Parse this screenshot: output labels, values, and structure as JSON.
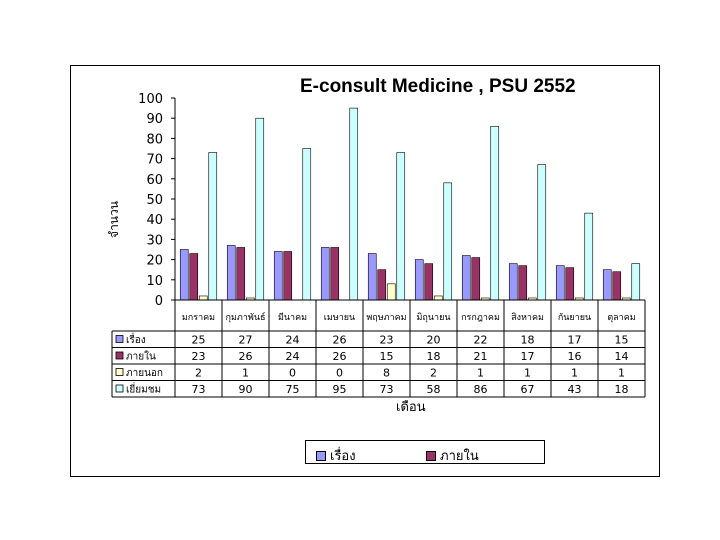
{
  "chart_data": {
    "type": "bar",
    "title": "E-consult Medicine , PSU 2552",
    "xlabel": "เดือน",
    "ylabel": "จำนวน",
    "ylim": [
      0,
      100
    ],
    "yticks": [
      0,
      10,
      20,
      30,
      40,
      50,
      60,
      70,
      80,
      90,
      100
    ],
    "categories": [
      "มกราคม",
      "กุมภาพันธ์",
      "มีนาคม",
      "เมษายน",
      "พฤษภาคม",
      "มิถุนายน",
      "กรกฎาคม",
      "สิงหาคม",
      "กันยายน",
      "ตุลาคม"
    ],
    "series": [
      {
        "name": "เรื่อง",
        "color": "#9999ff",
        "values": [
          25,
          27,
          24,
          26,
          23,
          20,
          22,
          18,
          17,
          15
        ]
      },
      {
        "name": "ภายใน",
        "color": "#993366",
        "values": [
          23,
          26,
          24,
          26,
          15,
          18,
          21,
          17,
          16,
          14
        ]
      },
      {
        "name": "ภายนอก",
        "color": "#ffffcc",
        "values": [
          2,
          1,
          0,
          0,
          8,
          2,
          1,
          1,
          1,
          1
        ]
      },
      {
        "name": "เยี่ยมชม",
        "color": "#ccffff",
        "values": [
          73,
          90,
          75,
          95,
          73,
          58,
          86,
          67,
          43,
          18
        ]
      }
    ],
    "legend_entries": [
      "เรื่อง",
      "ภายใน"
    ],
    "legend_position": "bottom",
    "data_table": true
  }
}
